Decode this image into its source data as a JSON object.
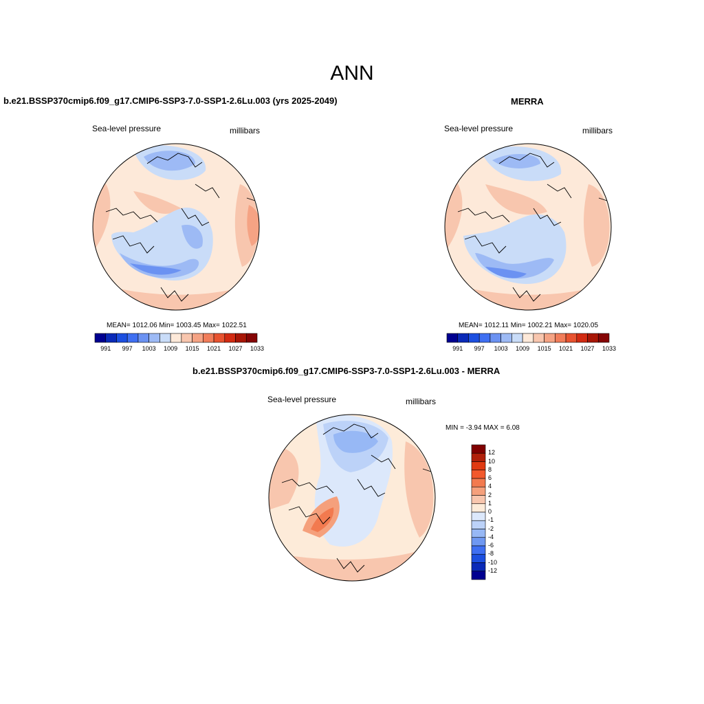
{
  "main_title": "ANN",
  "panels": [
    {
      "title": "b.e21.BSSP370cmip6.f09_g17.CMIP6-SSP3-7.0-SSP1-2.6Lu.003 (yrs 2025-2049)",
      "variable": "Sea-level pressure",
      "units": "millibars",
      "stats": "MEAN= 1012.06   Min= 1003.45   Max= 1022.51"
    },
    {
      "title": "MERRA",
      "variable": "Sea-level pressure",
      "units": "millibars",
      "stats": "MEAN= 1012.11   Min= 1002.21   Max= 1020.05"
    },
    {
      "title": "b.e21.BSSP370cmip6.f09_g17.CMIP6-SSP3-7.0-SSP1-2.6Lu.003 - MERRA",
      "variable": "Sea-level pressure",
      "units": "millibars",
      "stats": "MIN =  -3.94 MAX =   6.08"
    }
  ],
  "abs_colorbar": {
    "colors": [
      "#000090",
      "#0a2ab8",
      "#1c4fe0",
      "#3f6ff2",
      "#6b92f2",
      "#9dbaf5",
      "#c9dcf8",
      "#fde9d9",
      "#f8c6ae",
      "#f5a384",
      "#f17d5a",
      "#e85330",
      "#d22b12",
      "#a81606",
      "#850505"
    ],
    "tick_labels": [
      "991",
      "997",
      "1003",
      "1009",
      "1015",
      "1021",
      "1027",
      "1033"
    ]
  },
  "diff_colorbar": {
    "colors": [
      "#800000",
      "#b1200a",
      "#e03a12",
      "#f2592c",
      "#f27a4f",
      "#f5a07c",
      "#f8c6ae",
      "#fdebd9",
      "#dce8fb",
      "#bcd2f8",
      "#97b8f5",
      "#6f98f2",
      "#3f6ff2",
      "#1c4fe0",
      "#0a2ab8",
      "#000090"
    ],
    "tick_labels": [
      "12",
      "10",
      "8",
      "6",
      "4",
      "2",
      "1",
      "0",
      "-1",
      "-2",
      "-4",
      "-6",
      "-8",
      "-10",
      "-12"
    ]
  }
}
